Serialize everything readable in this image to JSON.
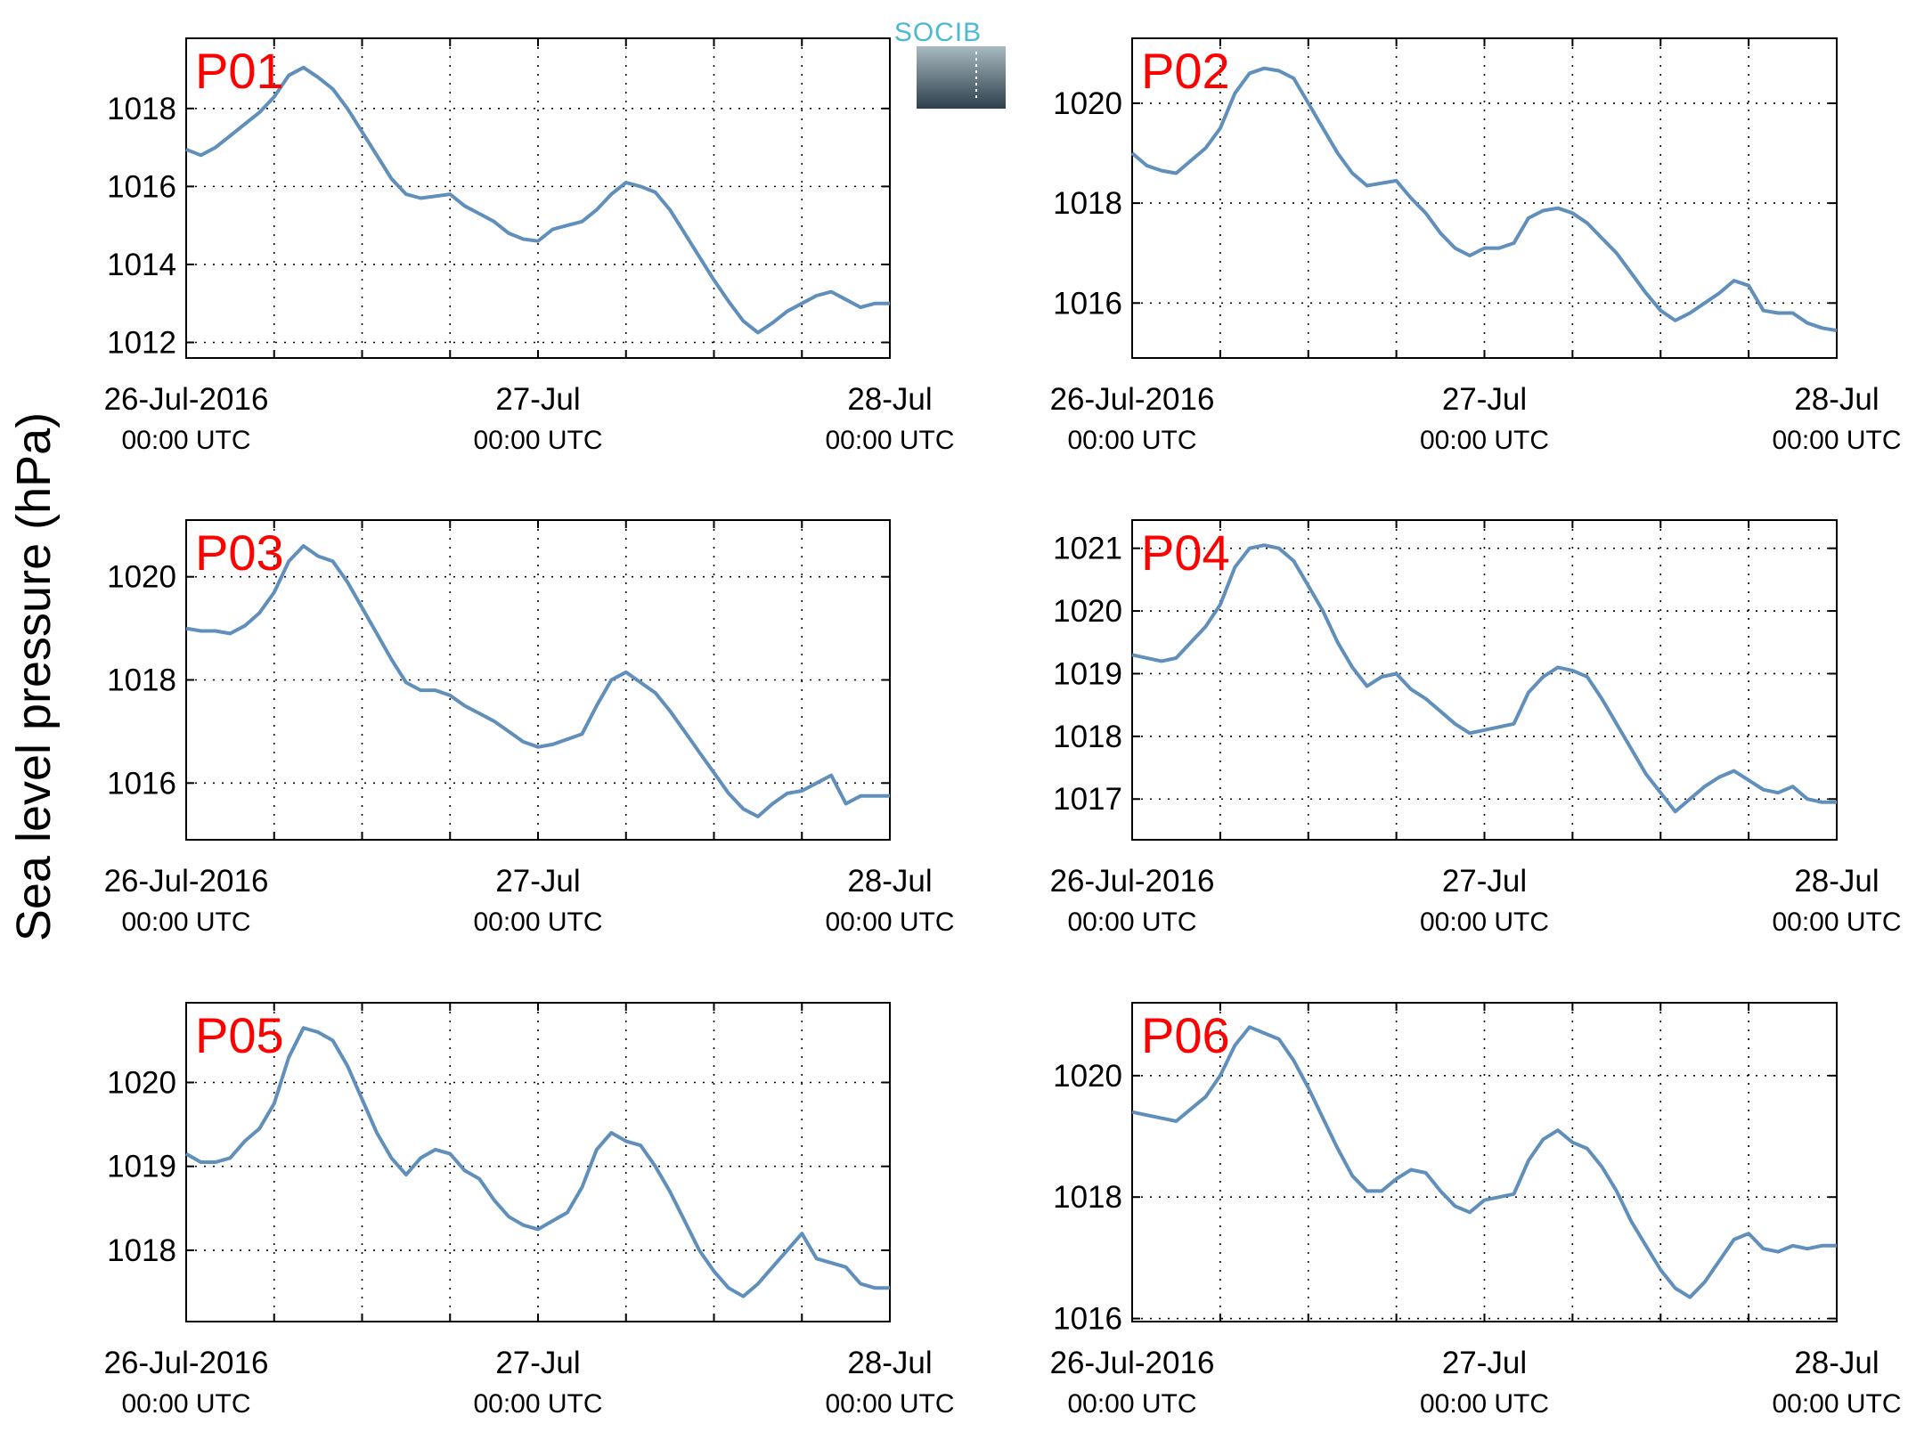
{
  "figure": {
    "ylabel": "Sea level pressure (hPa)",
    "line_color": "#5f8fba",
    "label_color": "#ff0000",
    "logo_text": "SOCIB"
  },
  "x_tick_labels": [
    {
      "line1": "26-Jul-2016",
      "line2": "00:00 UTC"
    },
    {
      "line1": "27-Jul",
      "line2": "00:00 UTC"
    },
    {
      "line1": "28-Jul",
      "line2": "00:00 UTC"
    }
  ],
  "chart_data": [
    {
      "type": "line",
      "label": "P01",
      "x_unit": "hours since 26-Jul-2016 00:00 UTC",
      "xlim": [
        0,
        48
      ],
      "ylim": [
        1011.6,
        1019.8
      ],
      "yticks": [
        1012,
        1014,
        1016,
        1018
      ],
      "x": [
        0,
        1,
        2,
        3,
        4,
        5,
        6,
        7,
        8,
        9,
        10,
        11,
        12,
        13,
        14,
        15,
        16,
        17,
        18,
        19,
        20,
        21,
        22,
        23,
        24,
        25,
        26,
        27,
        28,
        29,
        30,
        31,
        32,
        33,
        34,
        35,
        36,
        37,
        38,
        39,
        40,
        41,
        42,
        43,
        44,
        45,
        46,
        47,
        48
      ],
      "y": [
        1016.95,
        1016.8,
        1017.0,
        1017.3,
        1017.6,
        1017.9,
        1018.3,
        1018.85,
        1019.05,
        1018.8,
        1018.5,
        1018.0,
        1017.4,
        1016.8,
        1016.2,
        1015.8,
        1015.7,
        1015.75,
        1015.8,
        1015.5,
        1015.3,
        1015.1,
        1014.8,
        1014.65,
        1014.6,
        1014.9,
        1015.0,
        1015.1,
        1015.4,
        1015.8,
        1016.1,
        1016.0,
        1015.85,
        1015.4,
        1014.8,
        1014.2,
        1013.6,
        1013.05,
        1012.55,
        1012.25,
        1012.5,
        1012.8,
        1013.0,
        1013.2,
        1013.3,
        1013.1,
        1012.9,
        1013.0,
        1013.0
      ]
    },
    {
      "type": "line",
      "label": "P02",
      "x_unit": "hours since 26-Jul-2016 00:00 UTC",
      "xlim": [
        0,
        48
      ],
      "ylim": [
        1014.9,
        1021.3
      ],
      "yticks": [
        1016,
        1018,
        1020
      ],
      "x": [
        0,
        1,
        2,
        3,
        4,
        5,
        6,
        7,
        8,
        9,
        10,
        11,
        12,
        13,
        14,
        15,
        16,
        17,
        18,
        19,
        20,
        21,
        22,
        23,
        24,
        25,
        26,
        27,
        28,
        29,
        30,
        31,
        32,
        33,
        34,
        35,
        36,
        37,
        38,
        39,
        40,
        41,
        42,
        43,
        44,
        45,
        46,
        47,
        48
      ],
      "y": [
        1019.0,
        1018.75,
        1018.65,
        1018.6,
        1018.85,
        1019.1,
        1019.5,
        1020.2,
        1020.6,
        1020.7,
        1020.65,
        1020.5,
        1020.0,
        1019.5,
        1019.0,
        1018.6,
        1018.35,
        1018.4,
        1018.45,
        1018.1,
        1017.8,
        1017.4,
        1017.1,
        1016.95,
        1017.1,
        1017.1,
        1017.2,
        1017.7,
        1017.85,
        1017.9,
        1017.8,
        1017.6,
        1017.3,
        1017.0,
        1016.6,
        1016.2,
        1015.85,
        1015.65,
        1015.8,
        1016.0,
        1016.2,
        1016.45,
        1016.35,
        1015.85,
        1015.8,
        1015.8,
        1015.6,
        1015.5,
        1015.45
      ]
    },
    {
      "type": "line",
      "label": "P03",
      "x_unit": "hours since 26-Jul-2016 00:00 UTC",
      "xlim": [
        0,
        48
      ],
      "ylim": [
        1014.9,
        1021.1
      ],
      "yticks": [
        1016,
        1018,
        1020
      ],
      "x": [
        0,
        1,
        2,
        3,
        4,
        5,
        6,
        7,
        8,
        9,
        10,
        11,
        12,
        13,
        14,
        15,
        16,
        17,
        18,
        19,
        20,
        21,
        22,
        23,
        24,
        25,
        26,
        27,
        28,
        29,
        30,
        31,
        32,
        33,
        34,
        35,
        36,
        37,
        38,
        39,
        40,
        41,
        42,
        43,
        44,
        45,
        46,
        47,
        48
      ],
      "y": [
        1019.0,
        1018.95,
        1018.95,
        1018.9,
        1019.05,
        1019.3,
        1019.7,
        1020.3,
        1020.6,
        1020.4,
        1020.3,
        1019.9,
        1019.4,
        1018.9,
        1018.4,
        1017.95,
        1017.8,
        1017.8,
        1017.7,
        1017.5,
        1017.35,
        1017.2,
        1017.0,
        1016.8,
        1016.7,
        1016.75,
        1016.85,
        1016.95,
        1017.5,
        1018.0,
        1018.15,
        1017.95,
        1017.75,
        1017.4,
        1017.0,
        1016.6,
        1016.2,
        1015.8,
        1015.5,
        1015.35,
        1015.6,
        1015.8,
        1015.85,
        1016.0,
        1016.15,
        1015.6,
        1015.75,
        1015.75,
        1015.75
      ]
    },
    {
      "type": "line",
      "label": "P04",
      "x_unit": "hours since 26-Jul-2016 00:00 UTC",
      "xlim": [
        0,
        48
      ],
      "ylim": [
        1016.35,
        1021.45
      ],
      "yticks": [
        1017,
        1018,
        1019,
        1020,
        1021
      ],
      "x": [
        0,
        1,
        2,
        3,
        4,
        5,
        6,
        7,
        8,
        9,
        10,
        11,
        12,
        13,
        14,
        15,
        16,
        17,
        18,
        19,
        20,
        21,
        22,
        23,
        24,
        25,
        26,
        27,
        28,
        29,
        30,
        31,
        32,
        33,
        34,
        35,
        36,
        37,
        38,
        39,
        40,
        41,
        42,
        43,
        44,
        45,
        46,
        47,
        48
      ],
      "y": [
        1019.3,
        1019.25,
        1019.2,
        1019.25,
        1019.5,
        1019.75,
        1020.1,
        1020.7,
        1021.0,
        1021.05,
        1021.0,
        1020.8,
        1020.4,
        1020.0,
        1019.5,
        1019.1,
        1018.8,
        1018.95,
        1019.0,
        1018.75,
        1018.6,
        1018.4,
        1018.2,
        1018.05,
        1018.1,
        1018.15,
        1018.2,
        1018.7,
        1018.95,
        1019.1,
        1019.05,
        1018.95,
        1018.6,
        1018.2,
        1017.8,
        1017.4,
        1017.1,
        1016.8,
        1017.0,
        1017.2,
        1017.35,
        1017.45,
        1017.3,
        1017.15,
        1017.1,
        1017.2,
        1017.0,
        1016.95,
        1016.95
      ]
    },
    {
      "type": "line",
      "label": "P05",
      "x_unit": "hours since 26-Jul-2016 00:00 UTC",
      "xlim": [
        0,
        48
      ],
      "ylim": [
        1017.15,
        1020.95
      ],
      "yticks": [
        1018,
        1019,
        1020
      ],
      "x": [
        0,
        1,
        2,
        3,
        4,
        5,
        6,
        7,
        8,
        9,
        10,
        11,
        12,
        13,
        14,
        15,
        16,
        17,
        18,
        19,
        20,
        21,
        22,
        23,
        24,
        25,
        26,
        27,
        28,
        29,
        30,
        31,
        32,
        33,
        34,
        35,
        36,
        37,
        38,
        39,
        40,
        41,
        42,
        43,
        44,
        45,
        46,
        47,
        48
      ],
      "y": [
        1019.15,
        1019.05,
        1019.05,
        1019.1,
        1019.3,
        1019.45,
        1019.75,
        1020.3,
        1020.65,
        1020.6,
        1020.5,
        1020.2,
        1019.8,
        1019.4,
        1019.1,
        1018.9,
        1019.1,
        1019.2,
        1019.15,
        1018.95,
        1018.85,
        1018.6,
        1018.4,
        1018.3,
        1018.25,
        1018.35,
        1018.45,
        1018.75,
        1019.2,
        1019.4,
        1019.3,
        1019.25,
        1019.0,
        1018.7,
        1018.35,
        1018.0,
        1017.75,
        1017.55,
        1017.45,
        1017.6,
        1017.8,
        1018.0,
        1018.2,
        1017.9,
        1017.85,
        1017.8,
        1017.6,
        1017.55,
        1017.55
      ]
    },
    {
      "type": "line",
      "label": "P06",
      "x_unit": "hours since 26-Jul-2016 00:00 UTC",
      "xlim": [
        0,
        48
      ],
      "ylim": [
        1015.95,
        1021.2
      ],
      "yticks": [
        1016,
        1018,
        1020
      ],
      "x": [
        0,
        1,
        2,
        3,
        4,
        5,
        6,
        7,
        8,
        9,
        10,
        11,
        12,
        13,
        14,
        15,
        16,
        17,
        18,
        19,
        20,
        21,
        22,
        23,
        24,
        25,
        26,
        27,
        28,
        29,
        30,
        31,
        32,
        33,
        34,
        35,
        36,
        37,
        38,
        39,
        40,
        41,
        42,
        43,
        44,
        45,
        46,
        47,
        48
      ],
      "y": [
        1019.4,
        1019.35,
        1019.3,
        1019.25,
        1019.45,
        1019.65,
        1020.0,
        1020.5,
        1020.8,
        1020.7,
        1020.6,
        1020.25,
        1019.8,
        1019.3,
        1018.8,
        1018.35,
        1018.1,
        1018.1,
        1018.3,
        1018.45,
        1018.4,
        1018.1,
        1017.85,
        1017.75,
        1017.95,
        1018.0,
        1018.05,
        1018.6,
        1018.95,
        1019.1,
        1018.9,
        1018.8,
        1018.5,
        1018.1,
        1017.6,
        1017.2,
        1016.8,
        1016.5,
        1016.35,
        1016.6,
        1016.95,
        1017.3,
        1017.4,
        1017.15,
        1017.1,
        1017.2,
        1017.15,
        1017.2,
        1017.2
      ]
    }
  ]
}
